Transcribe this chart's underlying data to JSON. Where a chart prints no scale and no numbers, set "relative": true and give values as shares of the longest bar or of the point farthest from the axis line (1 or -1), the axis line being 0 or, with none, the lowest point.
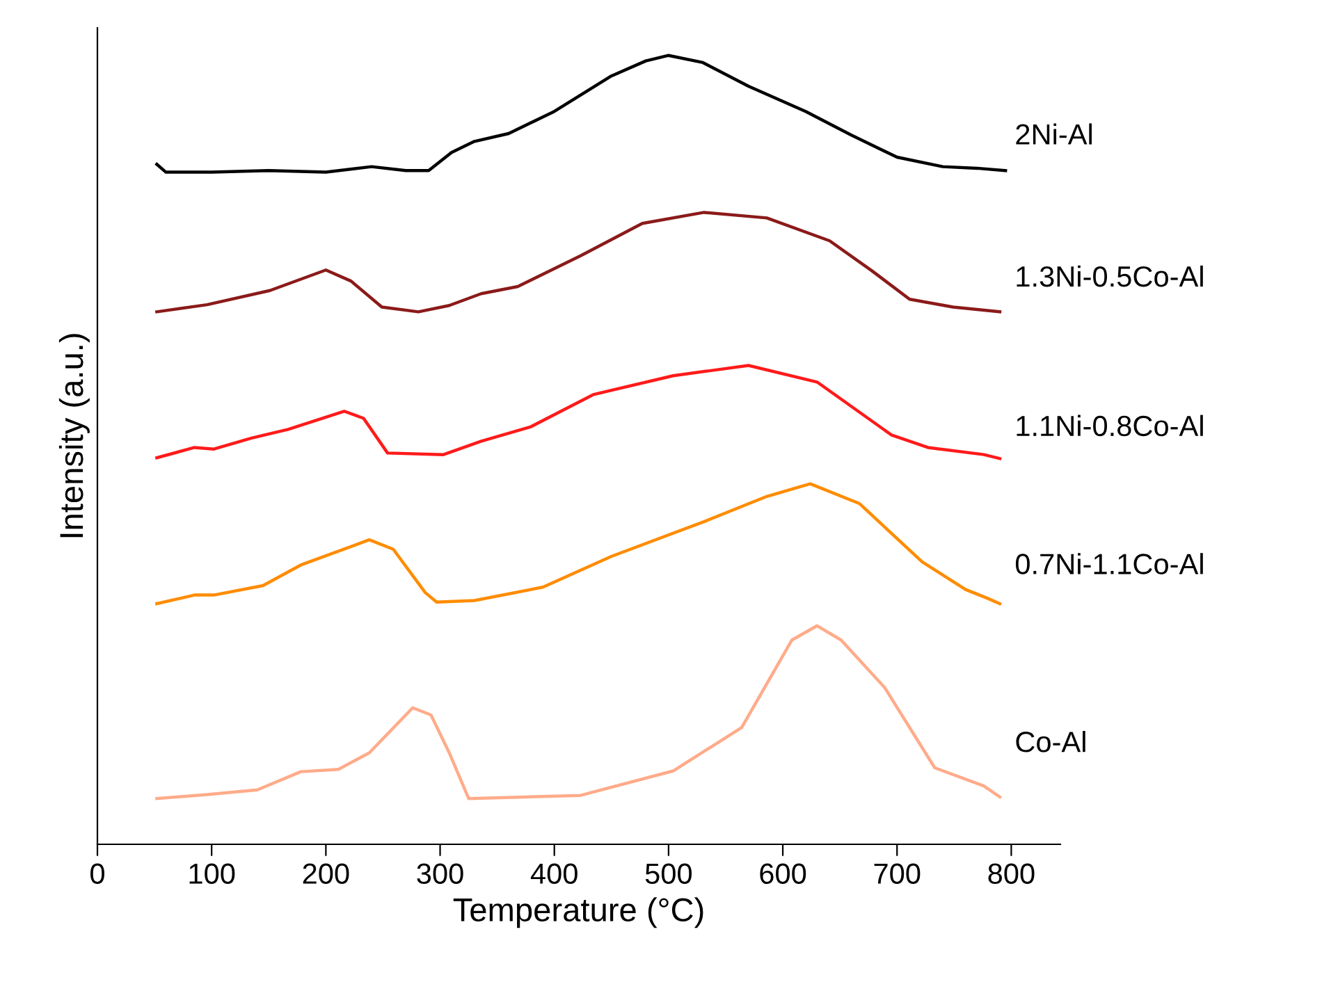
{
  "chart_data": {
    "type": "line",
    "relative": true,
    "xlabel": "Temperature (°C)",
    "ylabel": "Intensity (a.u.)",
    "xlim": [
      0,
      843
    ],
    "xticks": [
      0,
      100,
      200,
      300,
      400,
      500,
      600,
      700,
      800
    ],
    "tick_labels": "x",
    "grid": false,
    "legend": false,
    "marker": "none",
    "line_style": "solid",
    "series": [
      {
        "name": "2Ni-Al",
        "color": "#000000",
        "x": [
          52,
          60,
          100,
          150,
          200,
          240,
          270,
          290,
          310,
          330,
          360,
          400,
          450,
          480,
          500,
          530,
          570,
          620,
          660,
          700,
          740,
          770,
          795
        ],
        "values": [
          0.862,
          0.852,
          0.852,
          0.854,
          0.852,
          0.859,
          0.854,
          0.854,
          0.877,
          0.891,
          0.901,
          0.929,
          0.974,
          0.993,
          1.0,
          0.991,
          0.961,
          0.929,
          0.899,
          0.871,
          0.859,
          0.857,
          0.854
        ]
      },
      {
        "name": "1.3Ni-0.5Co-Al",
        "color": "#8b1a1a",
        "x": [
          52,
          96,
          151,
          200,
          222,
          249,
          281,
          308,
          336,
          368,
          423,
          477,
          531,
          586,
          641,
          678,
          711,
          749,
          790
        ],
        "values": [
          0.675,
          0.684,
          0.702,
          0.728,
          0.714,
          0.681,
          0.675,
          0.683,
          0.698,
          0.707,
          0.746,
          0.787,
          0.801,
          0.794,
          0.765,
          0.727,
          0.691,
          0.681,
          0.675
        ]
      },
      {
        "name": "1.1Ni-0.8Co-Al",
        "color": "#ff1a1a",
        "x": [
          52,
          85,
          102,
          135,
          167,
          216,
          233,
          254,
          303,
          336,
          379,
          434,
          504,
          570,
          630,
          695,
          727,
          776,
          790
        ],
        "values": [
          0.49,
          0.503,
          0.501,
          0.515,
          0.526,
          0.549,
          0.54,
          0.496,
          0.494,
          0.511,
          0.529,
          0.57,
          0.594,
          0.607,
          0.586,
          0.519,
          0.503,
          0.494,
          0.489
        ]
      },
      {
        "name": "0.7Ni-1.1Co-Al",
        "color": "#ff8c00",
        "x": [
          52,
          85,
          102,
          145,
          178,
          238,
          259,
          287,
          297,
          330,
          390,
          450,
          531,
          586,
          624,
          667,
          722,
          760,
          779,
          790
        ],
        "values": [
          0.305,
          0.316,
          0.316,
          0.328,
          0.354,
          0.386,
          0.374,
          0.319,
          0.307,
          0.309,
          0.326,
          0.365,
          0.409,
          0.441,
          0.457,
          0.432,
          0.358,
          0.323,
          0.312,
          0.305
        ]
      },
      {
        "name": "Co-Al",
        "color": "#ffab8a",
        "x": [
          52,
          96,
          140,
          178,
          211,
          238,
          276,
          292,
          308,
          325,
          423,
          504,
          564,
          608,
          630,
          651,
          689,
          733,
          776,
          790
        ],
        "values": [
          0.058,
          0.063,
          0.069,
          0.092,
          0.095,
          0.116,
          0.173,
          0.164,
          0.116,
          0.058,
          0.062,
          0.093,
          0.148,
          0.259,
          0.277,
          0.259,
          0.199,
          0.097,
          0.074,
          0.06
        ]
      }
    ]
  }
}
